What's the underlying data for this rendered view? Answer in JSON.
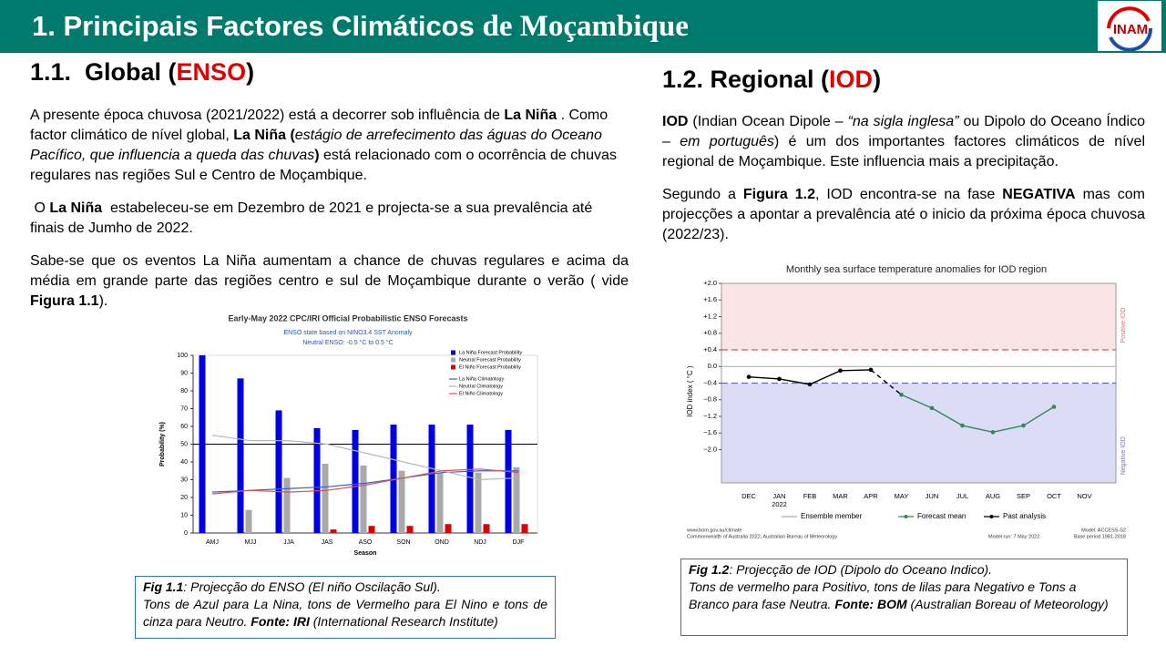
{
  "header": {
    "title_a": "1. Principais Factores Climáticos",
    "title_b": "de Moçambique",
    "logo": "INAM"
  },
  "left": {
    "heading": [
      "1.1.  Global (",
      "ENSO",
      ")"
    ],
    "p1": [
      "A presente época chuvosa (2021/2022) está a decorrer sob influência de ",
      "La Niña",
      " . Como factor climático de nível global, ",
      "La Niña (",
      "estágio de arrefecimento das águas do Oceano Pacífico, que influencia a queda das chuvas",
      ")",
      " está relacionado com o ocorrência de chuvas regulares nas regiões Sul e Centro de Moçambique."
    ],
    "p2": [
      " O ",
      "La Niña",
      "  estabeleceu-se em Dezembro de 2021 e projecta-se a sua prevalência até finais de Jumho de 2022."
    ],
    "p3": [
      "Sabe-se que os eventos La Niña aumentam a chance de chuvas regulares e acima da média em grande parte das regiões centro e sul de Moçambique durante o verão ( vide ",
      "Figura 1.1",
      ")."
    ],
    "caption": [
      "Fig 1.1",
      ": Projecção do ENSO (El niño Oscilação Sul).",
      "Tons de Azul para La Nina, tons de Vermelho para El Nino e tons de cinza para Neutro. ",
      "Fonte: IRI",
      " (International Research Institute)"
    ]
  },
  "right": {
    "heading": [
      "1.2. Regional (",
      "IOD",
      ")"
    ],
    "p1": [
      "IOD",
      " (Indian Ocean Dipole – ",
      "“na sigla inglesa”",
      " ou Dipolo do Oceano Índico – ",
      "em português",
      ") é um dos importantes factores climáticos de nível regional de Moçambique. Este influencia mais a precipitação."
    ],
    "p2": [
      "Segundo a ",
      "Figura 1.2",
      ", IOD encontra-se na fase ",
      "NEGATIVA",
      " mas com projecções a apontar a prevalência até o inicio da próxima época chuvosa (2022/23)."
    ],
    "caption": [
      "Fig 1.2",
      ": Projecção de IOD (Dipolo do Oceano Indico).",
      "Tons de vermelho para Positivo, tons de lilas para Negativo e Tons a Branco para fase Neutra. ",
      "Fonte: BOM",
      " (Australian Boreau of Meteorology)"
    ]
  },
  "chart_data": [
    {
      "type": "bar",
      "title": "Early-May 2022 CPC/IRI Official Probabilistic ENSO Forecasts",
      "subtitle": [
        "ENSO state based on NINO3.4 SST Anomaly",
        "Neutral ENSO: -0.5 °C to 0.5 °C"
      ],
      "xlabel": "Season",
      "ylabel": "Probability (%)",
      "categories": [
        "AMJ",
        "MJJ",
        "JJA",
        "JAS",
        "ASO",
        "SON",
        "OND",
        "NDJ",
        "DJF"
      ],
      "series": [
        {
          "name": "La Niña Forecast Probability",
          "color": "#0000e6",
          "values": [
            100,
            87,
            69,
            59,
            58,
            61,
            61,
            61,
            58
          ]
        },
        {
          "name": "Neutral Forecast Probability",
          "color": "#a9a9a9",
          "values": [
            0,
            13,
            31,
            39,
            38,
            35,
            34,
            34,
            37
          ]
        },
        {
          "name": "El Niño Forecast Probability",
          "color": "#e00000",
          "values": [
            0,
            0,
            0,
            2,
            4,
            4,
            5,
            5,
            5
          ]
        }
      ],
      "lines": [
        {
          "name": "La Niña Climatology",
          "color": "#3a5fd0",
          "values": [
            23,
            24,
            25,
            26,
            28,
            31,
            34,
            35,
            35
          ]
        },
        {
          "name": "Neutral Climatology",
          "color": "#b8b8b8",
          "values": [
            55,
            52,
            52,
            50,
            45,
            40,
            35,
            30,
            31
          ]
        },
        {
          "name": "El Niño Climatology",
          "color": "#e05050",
          "values": [
            22,
            24,
            23,
            24,
            27,
            31,
            35,
            36,
            34
          ]
        }
      ],
      "reference_line": 50,
      "ylim": [
        0,
        100
      ],
      "yticks": [
        0,
        10,
        20,
        30,
        40,
        50,
        60,
        70,
        80,
        90,
        100
      ],
      "legend": "upper right"
    },
    {
      "type": "line",
      "title": "Monthly sea surface temperature anomalies for IOD region",
      "ylabel": "IOD index ( °C )",
      "categories": [
        "DEC",
        "JAN",
        "FEB",
        "MAR",
        "APR",
        "MAY",
        "JUN",
        "JUL",
        "AUG",
        "SEP",
        "OCT",
        "NOV"
      ],
      "x_sublabels": [
        null,
        "2022",
        null,
        null,
        null,
        null,
        null,
        null,
        null,
        null,
        null,
        null
      ],
      "series": [
        {
          "name": "Past analysis",
          "color": "#000000",
          "values": [
            -0.25,
            -0.3,
            -0.43,
            -0.1,
            -0.08,
            null,
            null,
            null,
            null,
            null,
            null,
            null
          ]
        },
        {
          "name": "Forecast mean",
          "color": "#2e8b57",
          "values": [
            null,
            null,
            null,
            null,
            null,
            -0.68,
            -1.0,
            -1.42,
            -1.58,
            -1.42,
            -0.97,
            null
          ]
        }
      ],
      "ensemble_legend": "Ensemble member",
      "thresholds": [
        0.4,
        -0.4
      ],
      "regions": [
        "Positive IOD",
        "Negative IOD"
      ],
      "ylim": [
        -2.8,
        2.0
      ],
      "yticks": [
        {
          "value": 2.0,
          "label": "+2.0"
        },
        {
          "value": 1.6,
          "label": "+1.6"
        },
        {
          "value": 1.2,
          "label": "+1.2"
        },
        {
          "value": 0.8,
          "label": "+0.8"
        },
        {
          "value": 0.4,
          "label": "+0.4"
        },
        {
          "value": 0,
          "label": "0.0"
        },
        {
          "value": -0.4,
          "label": "−0.4"
        },
        {
          "value": -0.8,
          "label": "−0.8"
        },
        {
          "value": -1.2,
          "label": "−1.2"
        },
        {
          "value": -1.6,
          "label": "−1.6"
        },
        {
          "value": -2.0,
          "label": "−2.0"
        }
      ],
      "notes": [
        "www.bom.gov.au/climate",
        "Commonwealth of Australia 2022, Australian Bureau of Meteorology",
        "Model run: 7 May 2022",
        "Model: ACCESS-S2",
        "Base period 1981-2018"
      ]
    }
  ]
}
